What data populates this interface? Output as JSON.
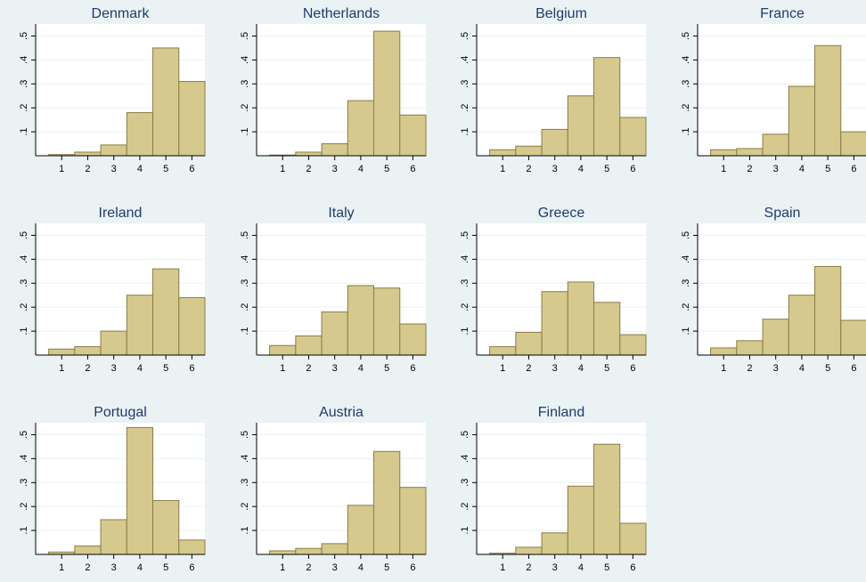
{
  "colors": {
    "background": "#eaf2f3",
    "plot_area": "#ffffff",
    "bar_fill": "#d6c98d",
    "bar_stroke": "#8a7c44",
    "axis": "#000000",
    "grid": "#eaf2f3",
    "title_text": "#1e3a6e"
  },
  "chart_data": {
    "type": "bar",
    "layout": "small-multiples-histogram",
    "categories": [
      1,
      2,
      3,
      4,
      5,
      6
    ],
    "xticks": [
      "1",
      "2",
      "3",
      "4",
      "5",
      "6"
    ],
    "yticks": [
      ".1",
      ".2",
      ".3",
      ".4",
      ".5"
    ],
    "ytick_values": [
      0.1,
      0.2,
      0.3,
      0.4,
      0.5
    ],
    "ylim": [
      0,
      0.55
    ],
    "xlim": [
      0,
      6.5
    ],
    "grid": true,
    "panels": [
      {
        "title": "Denmark",
        "values": [
          0.005,
          0.015,
          0.045,
          0.18,
          0.45,
          0.31
        ]
      },
      {
        "title": "Netherlands",
        "values": [
          0.003,
          0.015,
          0.05,
          0.23,
          0.52,
          0.17
        ]
      },
      {
        "title": "Belgium",
        "values": [
          0.025,
          0.04,
          0.11,
          0.25,
          0.41,
          0.16
        ]
      },
      {
        "title": "France",
        "values": [
          0.025,
          0.03,
          0.09,
          0.29,
          0.46,
          0.1
        ]
      },
      {
        "title": "Ireland",
        "values": [
          0.025,
          0.035,
          0.1,
          0.25,
          0.36,
          0.24
        ]
      },
      {
        "title": "Italy",
        "values": [
          0.04,
          0.08,
          0.18,
          0.29,
          0.28,
          0.13
        ]
      },
      {
        "title": "Greece",
        "values": [
          0.035,
          0.095,
          0.265,
          0.305,
          0.22,
          0.085
        ]
      },
      {
        "title": "Spain",
        "values": [
          0.03,
          0.06,
          0.15,
          0.25,
          0.37,
          0.145
        ]
      },
      {
        "title": "Portugal",
        "values": [
          0.01,
          0.035,
          0.145,
          0.53,
          0.225,
          0.06
        ]
      },
      {
        "title": "Austria",
        "values": [
          0.015,
          0.025,
          0.045,
          0.205,
          0.43,
          0.28
        ]
      },
      {
        "title": "Finland",
        "values": [
          0.005,
          0.03,
          0.09,
          0.285,
          0.46,
          0.13
        ]
      }
    ]
  }
}
